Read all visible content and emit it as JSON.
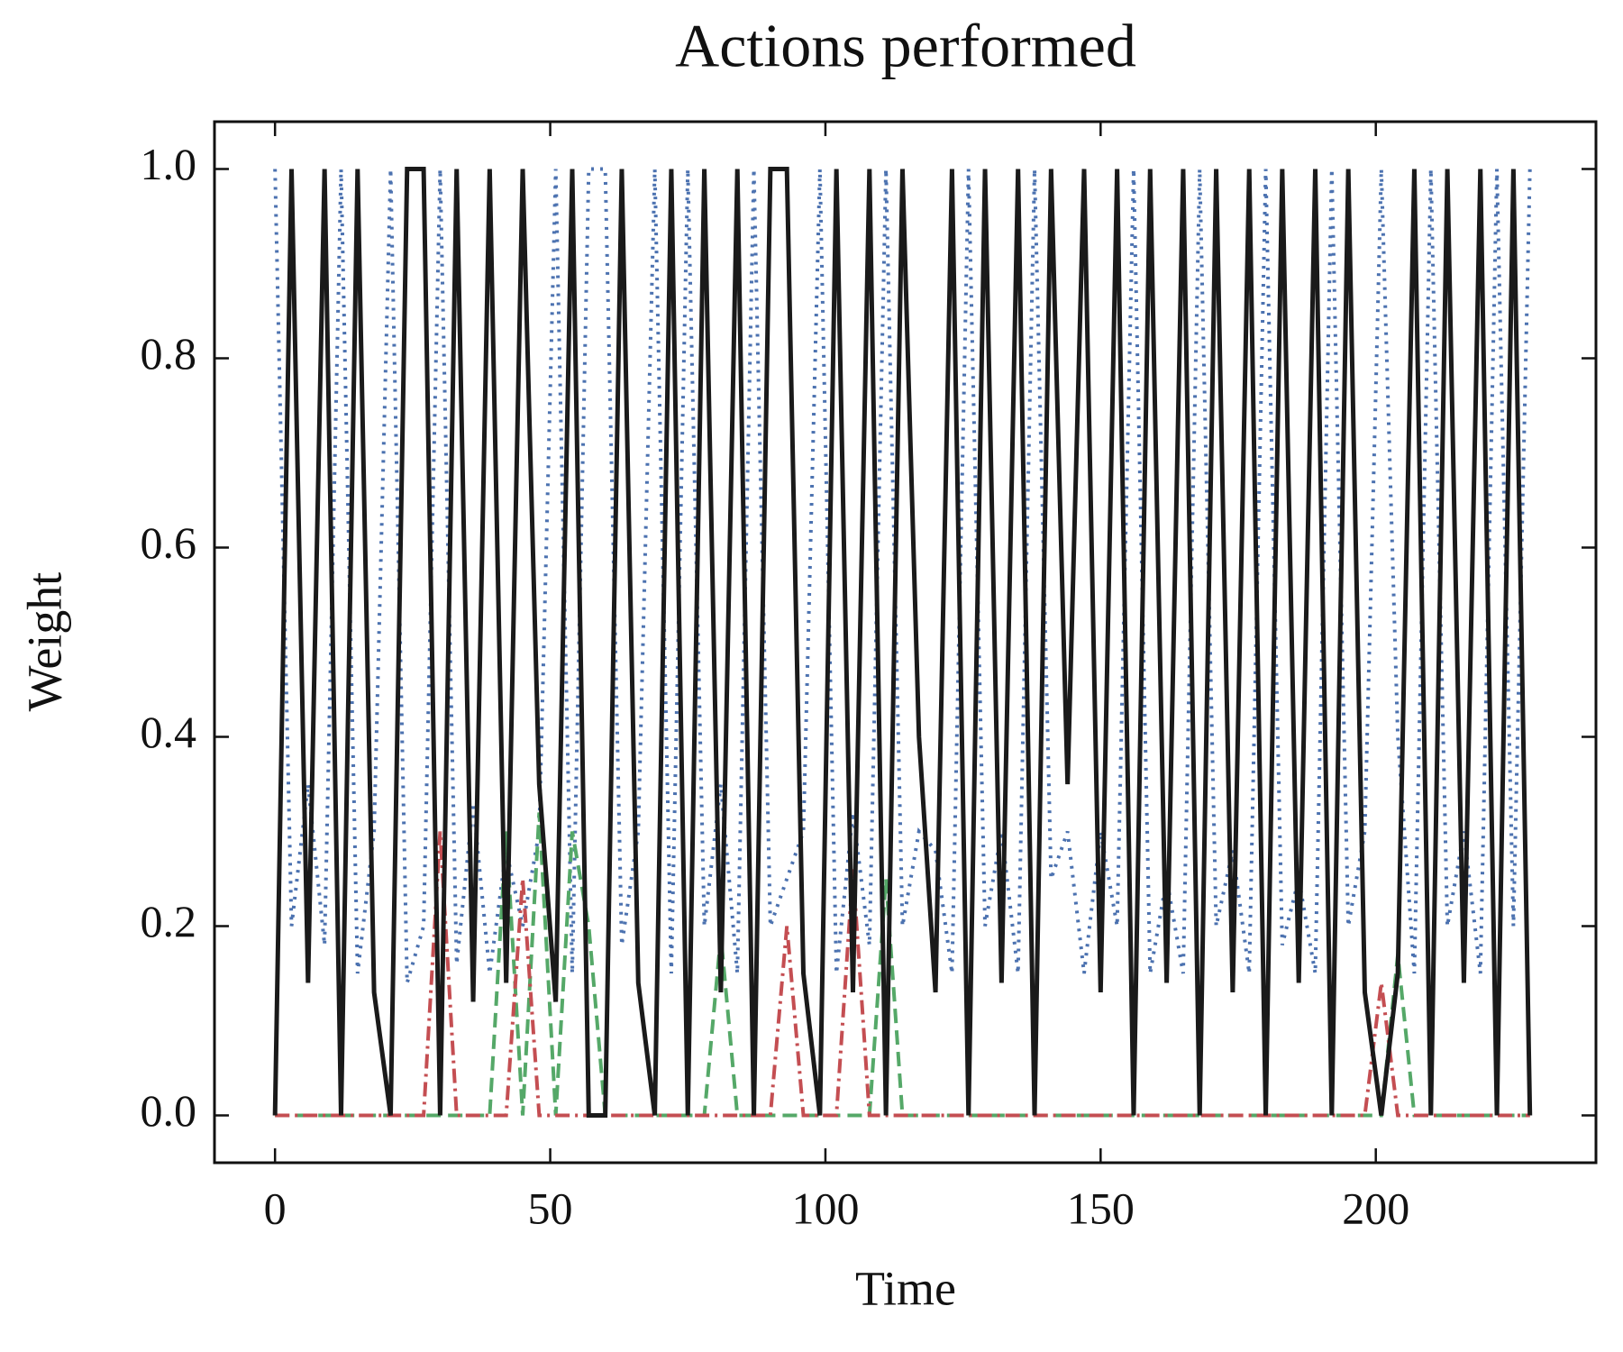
{
  "chart_data": {
    "type": "line",
    "title": "Actions performed",
    "xlabel": "Time",
    "ylabel": "Weight",
    "x": [
      0,
      3,
      6,
      9,
      12,
      15,
      18,
      21,
      24,
      27,
      30,
      33,
      36,
      39,
      42,
      45,
      48,
      51,
      54,
      57,
      60,
      63,
      66,
      69,
      72,
      75,
      78,
      81,
      84,
      87,
      90,
      93,
      96,
      99,
      102,
      105,
      108,
      111,
      114,
      117,
      120,
      123,
      126,
      129,
      132,
      135,
      138,
      141,
      144,
      147,
      150,
      153,
      156,
      159,
      162,
      165,
      168,
      171,
      174,
      177,
      180,
      183,
      186,
      189,
      192,
      195,
      198,
      201,
      204,
      207,
      210,
      213,
      216,
      219,
      222,
      225,
      228
    ],
    "series": [
      {
        "name": "blue",
        "color": "#4c72b0",
        "linestyle": "dotted",
        "values": [
          1,
          0.2,
          0.35,
          0.18,
          1,
          0.15,
          0.3,
          1,
          0.14,
          0.2,
          1,
          0.16,
          0.33,
          0.15,
          0.28,
          0.2,
          0.3,
          1,
          0.15,
          1,
          1,
          0.18,
          0.3,
          1,
          0.15,
          1,
          0.2,
          0.35,
          0.15,
          1,
          0.2,
          0.25,
          0.3,
          1,
          0.15,
          0.32,
          0.18,
          1,
          0.2,
          0.3,
          0.28,
          0.15,
          1,
          0.2,
          0.3,
          0.15,
          1,
          0.25,
          0.3,
          0.15,
          0.3,
          0.2,
          1,
          0.15,
          0.25,
          0.15,
          1,
          0.2,
          0.28,
          0.15,
          1,
          0.18,
          0.25,
          0.15,
          1,
          0.2,
          0.3,
          1,
          0.4,
          0.15,
          1,
          0.2,
          0.3,
          0.15,
          1,
          0.2,
          1
        ]
      },
      {
        "name": "green",
        "color": "#55a868",
        "linestyle": "dashed",
        "values": [
          0,
          0,
          0,
          0,
          0,
          0,
          0,
          0,
          0,
          0,
          0,
          0,
          0,
          0,
          0.3,
          0,
          0.32,
          0,
          0.3,
          0.2,
          0,
          0,
          0,
          0,
          0,
          0,
          0,
          0.19,
          0,
          0,
          0,
          0,
          0,
          0,
          0,
          0,
          0,
          0.25,
          0,
          0,
          0,
          0,
          0,
          0,
          0,
          0,
          0,
          0,
          0,
          0,
          0,
          0,
          0,
          0,
          0,
          0,
          0,
          0,
          0,
          0,
          0,
          0,
          0,
          0,
          0,
          0,
          0,
          0,
          0.17,
          0,
          0,
          0,
          0,
          0,
          0,
          0,
          0
        ]
      },
      {
        "name": "red",
        "color": "#c44e52",
        "linestyle": "dashdot",
        "values": [
          0,
          0,
          0,
          0,
          0,
          0,
          0,
          0,
          0,
          0,
          0.3,
          0,
          0,
          0,
          0,
          0.25,
          0,
          0,
          0,
          0,
          0,
          0,
          0,
          0,
          0,
          0,
          0,
          0,
          0,
          0,
          0,
          0.2,
          0,
          0,
          0,
          0.26,
          0,
          0,
          0,
          0,
          0,
          0,
          0,
          0,
          0,
          0,
          0,
          0,
          0,
          0,
          0,
          0,
          0,
          0,
          0,
          0,
          0,
          0,
          0,
          0,
          0,
          0,
          0,
          0,
          0,
          0,
          0,
          0.14,
          0,
          0,
          0,
          0,
          0,
          0,
          0,
          0,
          0
        ]
      },
      {
        "name": "black",
        "color": "#1a1a1a",
        "linestyle": "solid",
        "values": [
          0,
          1,
          0.14,
          1,
          0,
          1,
          0.13,
          0,
          1,
          1,
          0,
          1,
          0.12,
          1,
          0.14,
          1,
          0.35,
          0.12,
          1,
          0,
          0,
          1,
          0.14,
          0,
          1,
          0,
          1,
          0.13,
          1,
          0,
          1,
          1,
          0.15,
          0,
          1,
          0.13,
          1,
          0,
          1,
          0.4,
          0.13,
          1,
          0,
          1,
          0.14,
          1,
          0,
          1,
          0.35,
          1,
          0.13,
          1,
          0,
          1,
          0.14,
          1,
          0,
          1,
          0.13,
          1,
          0,
          1,
          0.14,
          1,
          0,
          1,
          0.13,
          0,
          0.15,
          1,
          0,
          1,
          0.14,
          1,
          0,
          1,
          0
        ]
      }
    ],
    "xlim": [
      -11,
      240
    ],
    "ylim": [
      -0.05,
      1.05
    ],
    "xticks": [
      0,
      50,
      100,
      150,
      200
    ],
    "yticks": [
      {
        "value": 0,
        "label": "0.0"
      },
      0.2,
      0.4,
      0.6,
      0.8,
      {
        "value": 1,
        "label": "1.0"
      }
    ]
  }
}
